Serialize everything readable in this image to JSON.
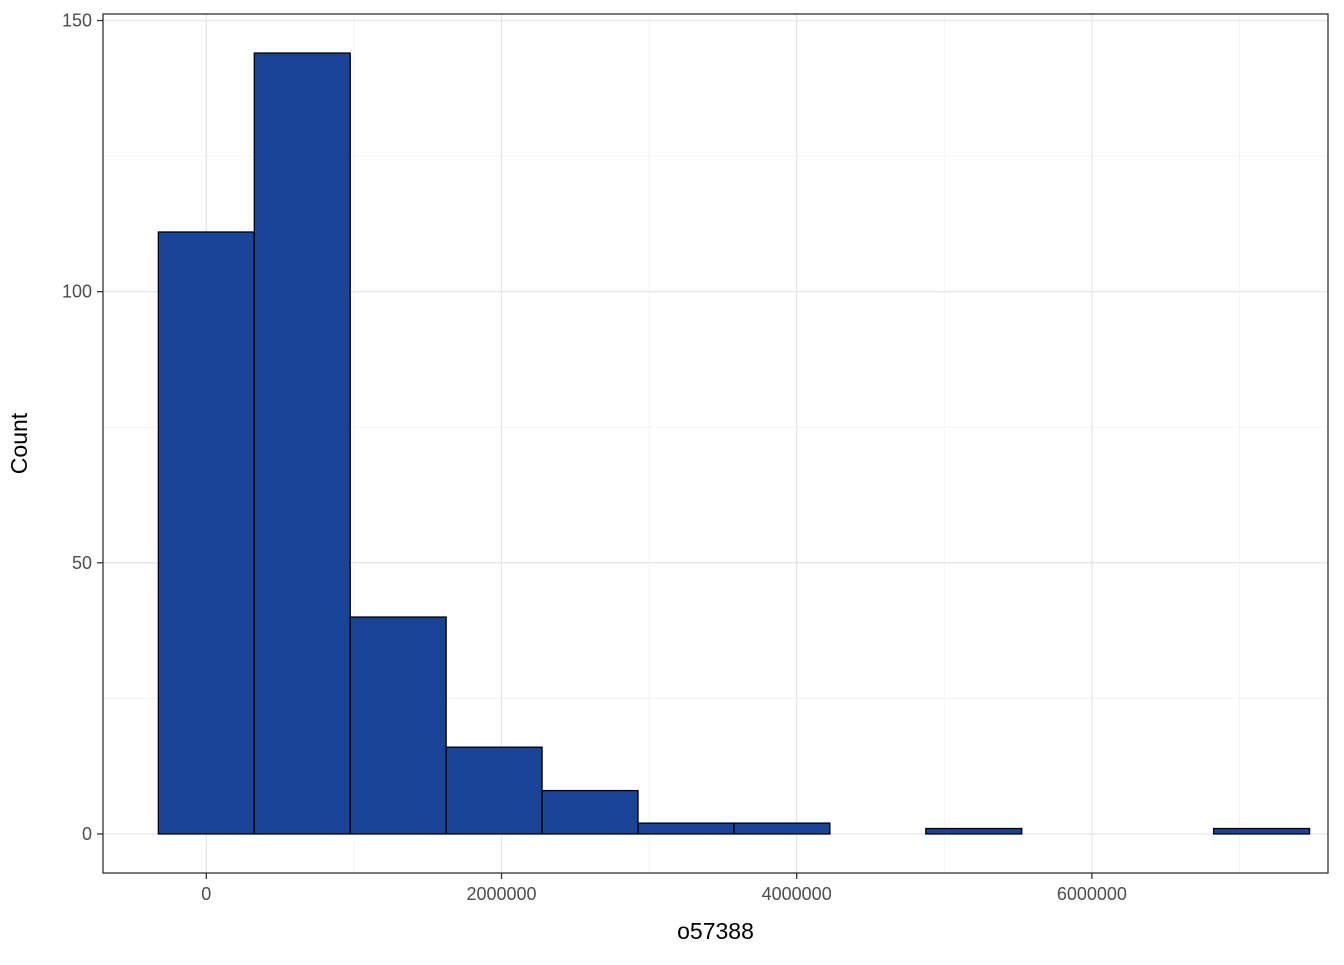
{
  "chart_data": {
    "type": "bar",
    "subtype": "histogram",
    "xlabel": "o57388",
    "ylabel": "Count",
    "bin_centers": [
      0,
      650000,
      1300000,
      1950000,
      2600000,
      3250000,
      3900000,
      4550000,
      5200000,
      5850000,
      6500000,
      7150000
    ],
    "bin_width": 650000,
    "values": [
      111,
      144,
      40,
      16,
      8,
      2,
      2,
      0,
      1,
      0,
      0,
      1
    ],
    "xlim": [
      -700000,
      7600000
    ],
    "ylim": [
      -7.2,
      151.2
    ],
    "x_ticks": [
      0,
      2000000,
      4000000,
      6000000
    ],
    "x_tick_labels": [
      "0",
      "2000000",
      "4000000",
      "6000000"
    ],
    "y_ticks": [
      0,
      50,
      100,
      150
    ],
    "y_tick_labels": [
      "0",
      "50",
      "100",
      "150"
    ],
    "x_minor_ticks": [
      1000000,
      3000000,
      5000000,
      7000000
    ],
    "y_minor_ticks": [
      25,
      75,
      125
    ],
    "grid": true,
    "legend": "none",
    "fill_color": "#1a4498",
    "edge_color": "#000000"
  }
}
